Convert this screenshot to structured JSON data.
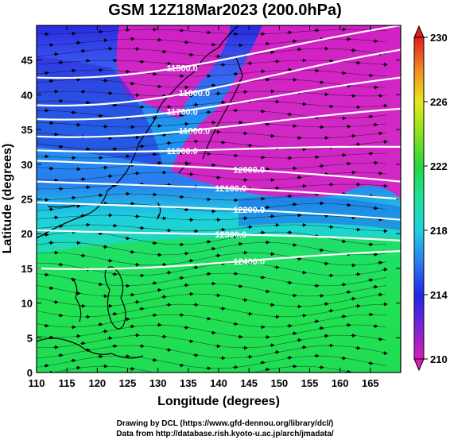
{
  "title": "GSM 12Z18Mar2023 (200.0hPa)",
  "xlabel": "Longitude (degrees)",
  "ylabel": "Latitude (degrees)",
  "x_ticks": [
    110,
    115,
    120,
    125,
    130,
    135,
    140,
    145,
    150,
    155,
    160,
    165
  ],
  "y_ticks": [
    0,
    5,
    10,
    15,
    20,
    25,
    30,
    35,
    40,
    45
  ],
  "xlim": [
    110,
    170
  ],
  "ylim": [
    0,
    50
  ],
  "colorbar": {
    "labels": [
      "210",
      "214",
      "218",
      "222",
      "226",
      "230"
    ],
    "range": [
      210,
      230
    ]
  },
  "contours": [
    {
      "label": "11500.0",
      "lat_west": 42.5,
      "lat_east": 50.0
    },
    {
      "label": "11600.0",
      "lat_west": 38.5,
      "lat_east": 46.5
    },
    {
      "label": "11700.0",
      "lat_west": 36.5,
      "lat_east": 42.5
    },
    {
      "label": "11800.0",
      "lat_west": 34.0,
      "lat_east": 38.0
    },
    {
      "label": "11900.0",
      "lat_west": 32.0,
      "lat_east": 32.5
    },
    {
      "label": "12000.0",
      "lat_west": 30.5,
      "lat_east": 27.5
    },
    {
      "label": "12100.0",
      "lat_west": 27.5,
      "lat_east": 25.0
    },
    {
      "label": "12200.0",
      "lat_west": 24.5,
      "lat_east": 22.0
    },
    {
      "label": "12300.0",
      "lat_west": 20.5,
      "lat_east": 19.0
    },
    {
      "label": "12400.0",
      "lat_west": 15.0,
      "lat_east": 17.5
    }
  ],
  "credits": {
    "line1": "Drawing by DCL (https://www.gfd-dennou.org/library/dcl/)",
    "line2": "Data from http://database.rish.kyoto-u.ac.jp/arch/jmadata/"
  }
}
